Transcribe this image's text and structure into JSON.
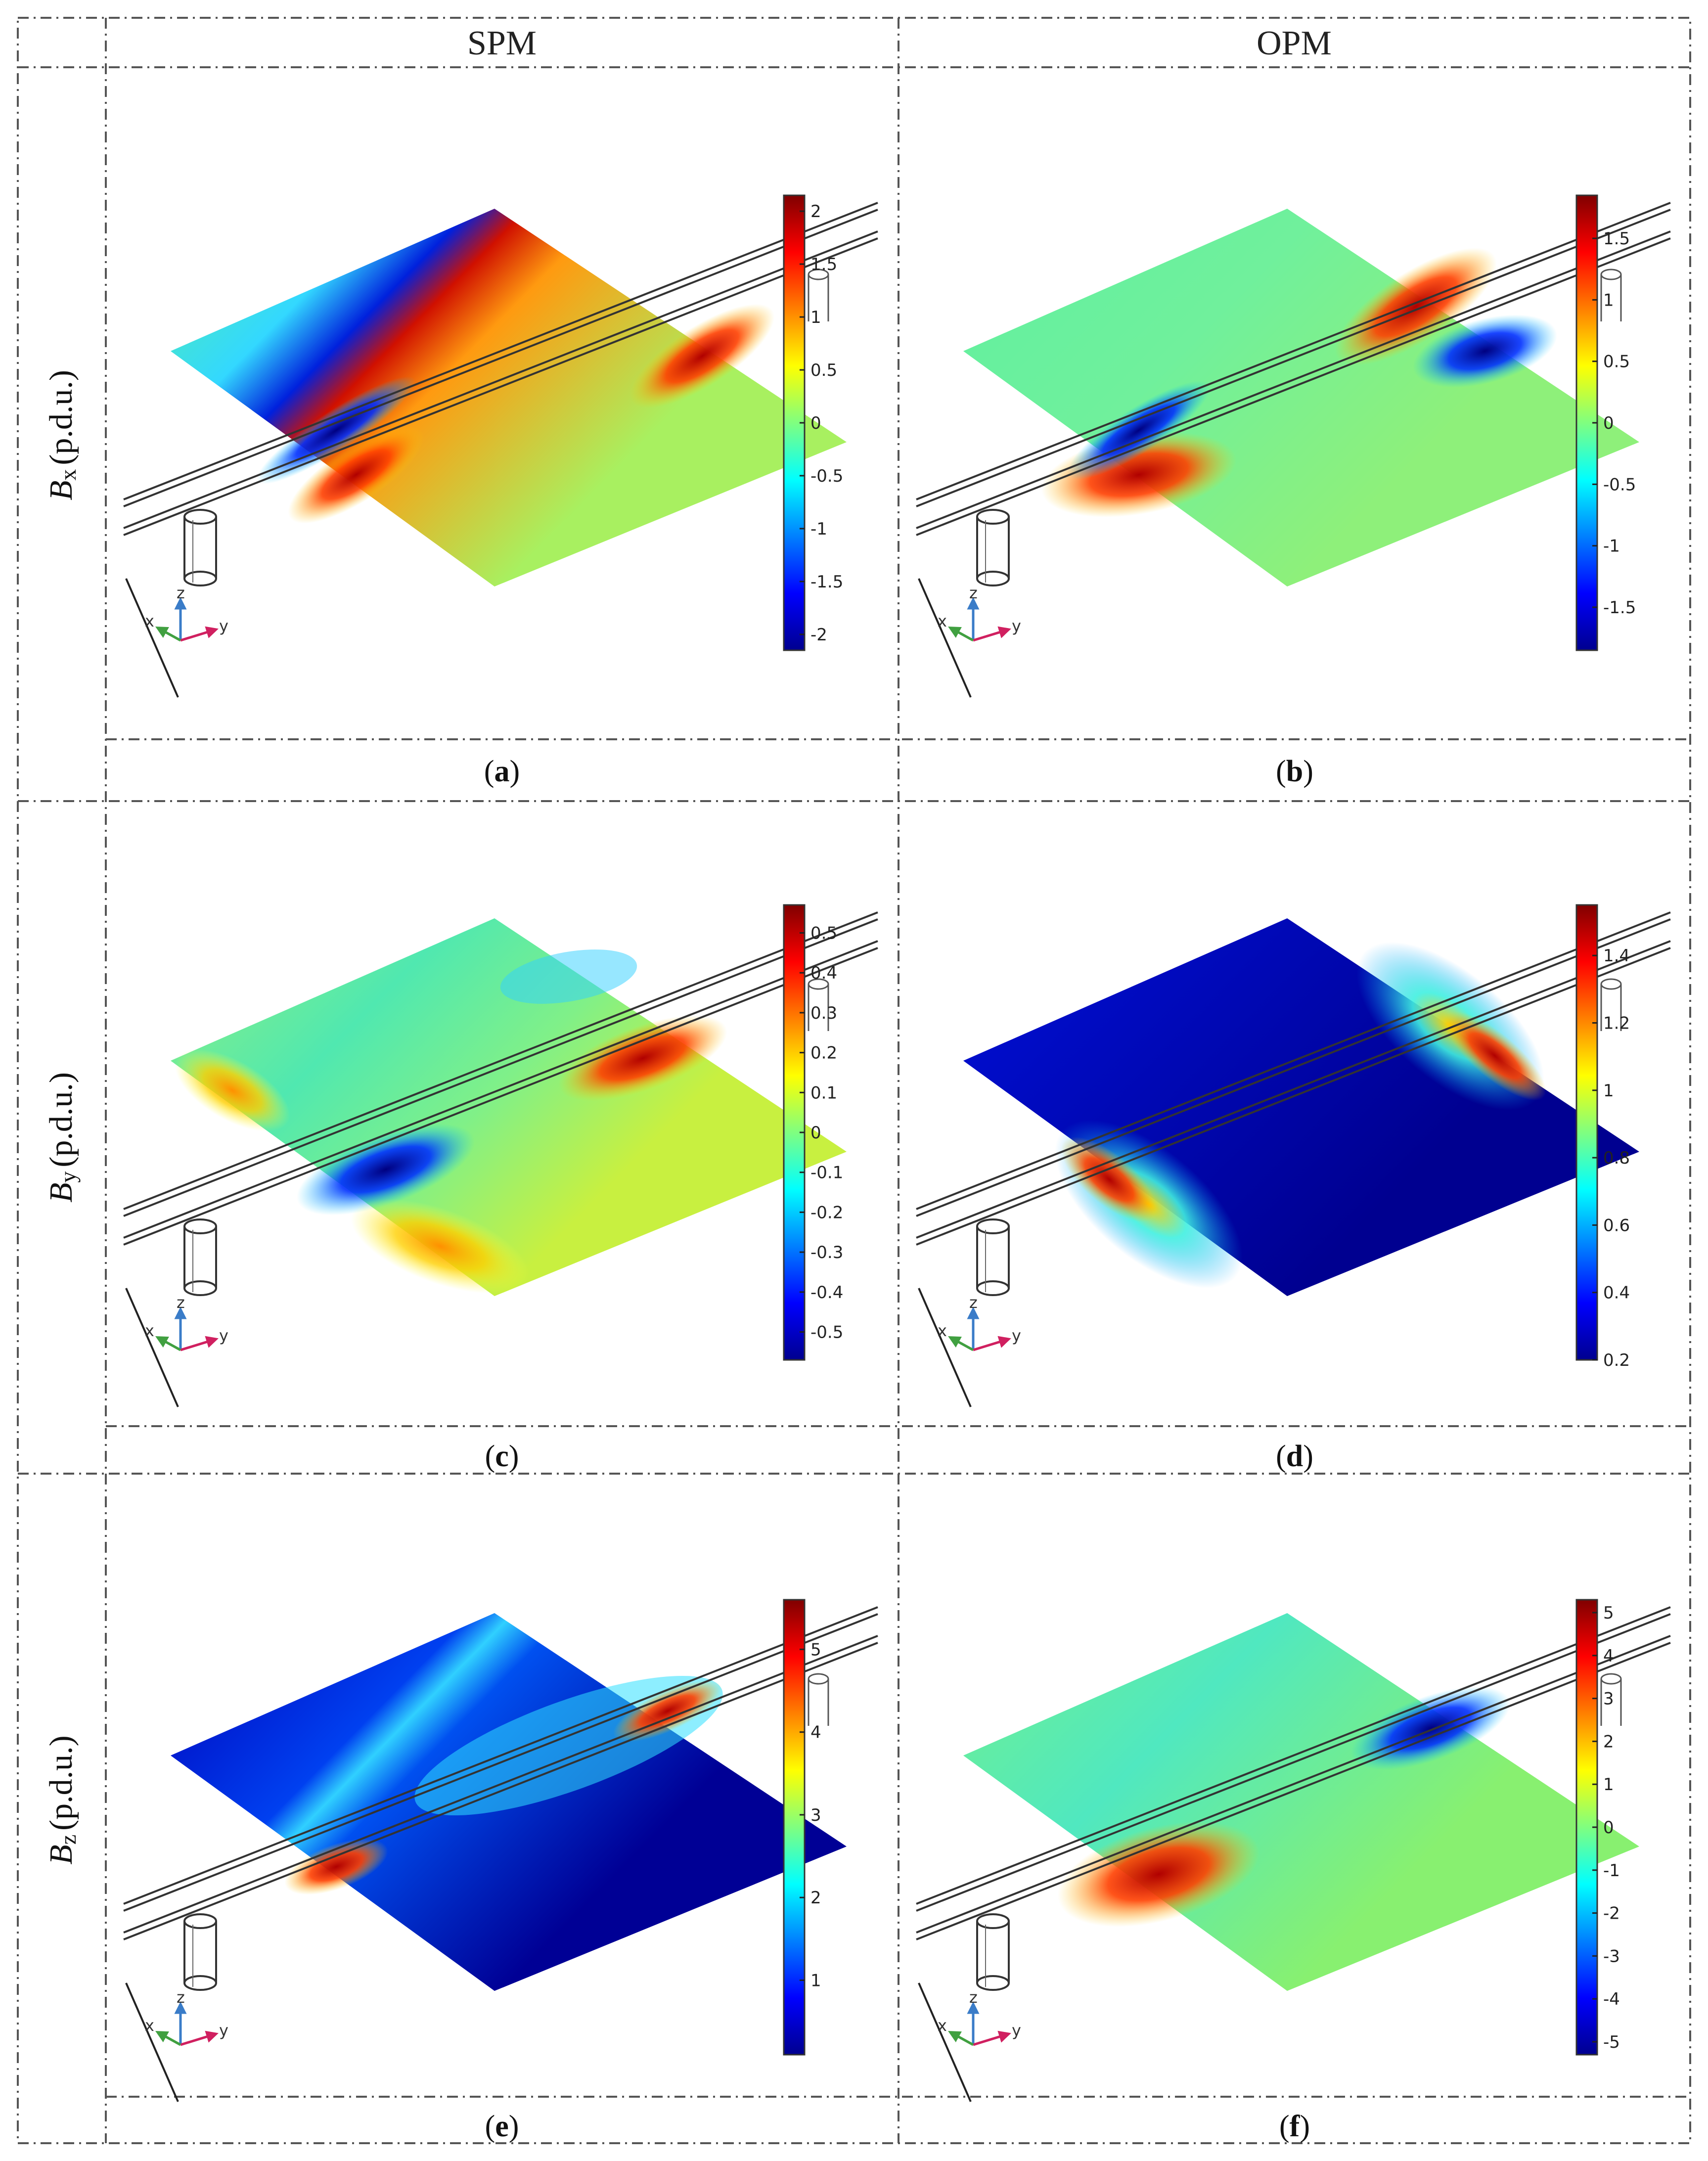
{
  "columns": [
    "SPM",
    "OPM"
  ],
  "rows": [
    {
      "label_main": "B",
      "label_sub": "x",
      "label_unit": "(p.d.u.)"
    },
    {
      "label_main": "B",
      "label_sub": "y",
      "label_unit": "(p.d.u.)"
    },
    {
      "label_main": "B",
      "label_sub": "z",
      "label_unit": "(p.d.u.)"
    }
  ],
  "axes_triad": {
    "x": "x",
    "y": "y",
    "z": "z"
  },
  "panels": [
    {
      "caption_open": "(",
      "caption_letter": "a",
      "caption_close": ")",
      "ticks": [
        "2",
        "1.5",
        "1",
        "0.5",
        "0",
        "-0.5",
        "-1",
        "-1.5",
        "-2"
      ],
      "range": [
        -2.15,
        2.15
      ]
    },
    {
      "caption_open": "(",
      "caption_letter": "b",
      "caption_close": ")",
      "ticks": [
        "1.5",
        "1",
        "0.5",
        "0",
        "-0.5",
        "-1",
        "-1.5"
      ],
      "range": [
        -1.85,
        1.85
      ]
    },
    {
      "caption_open": "(",
      "caption_letter": "c",
      "caption_close": ")",
      "ticks": [
        "0.5",
        "0.4",
        "0.3",
        "0.2",
        "0.1",
        "0",
        "-0.1",
        "-0.2",
        "-0.3",
        "-0.4",
        "-0.5"
      ],
      "range": [
        -0.57,
        0.57
      ]
    },
    {
      "caption_open": "(",
      "caption_letter": "d",
      "caption_close": ")",
      "ticks": [
        "1.4",
        "1.2",
        "1",
        "0.8",
        "0.6",
        "0.4",
        "0.2"
      ],
      "range": [
        0.2,
        1.55
      ]
    },
    {
      "caption_open": "(",
      "caption_letter": "e",
      "caption_close": ")",
      "ticks": [
        "5",
        "4",
        "3",
        "2",
        "1"
      ],
      "range": [
        0.1,
        5.6
      ]
    },
    {
      "caption_open": "(",
      "caption_letter": "f",
      "caption_close": ")",
      "ticks": [
        "5",
        "4",
        "3",
        "2",
        "1",
        "0",
        "-1",
        "-2",
        "-3",
        "-4",
        "-5"
      ],
      "range": [
        -5.3,
        5.3
      ]
    }
  ],
  "colors": {
    "colormap": [
      "#00008f",
      "#0000ff",
      "#00ffff",
      "#ffff00",
      "#ff0000",
      "#800000"
    ]
  }
}
